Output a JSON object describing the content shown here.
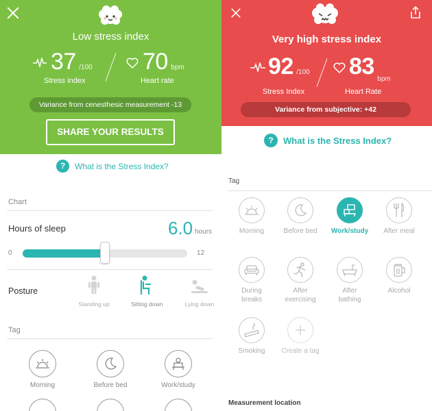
{
  "left": {
    "header": {
      "title": "Low stress index",
      "stress_value": "37",
      "stress_unit": "/100",
      "stress_label": "Stress index",
      "heart_value": "70",
      "heart_unit": "bpm",
      "heart_label": "Heart rate",
      "variance": "Variance from cenesthesic measurement -13",
      "share_label": "SHARE YOUR RESULTS",
      "bg_color": "#7bc043"
    },
    "question_link": "What is the Stress Index?",
    "chart_section": "Chart",
    "sleep": {
      "label": "Hours of sleep",
      "value": "6.0",
      "unit": "hours",
      "min": "0",
      "max": "12",
      "fraction": 0.5
    },
    "posture": {
      "label": "Posture",
      "options": [
        {
          "label": "Standing up",
          "icon": "standing-icon",
          "active": false
        },
        {
          "label": "Sitting down",
          "icon": "sitting-icon",
          "active": true
        },
        {
          "label": "Lying down",
          "icon": "lying-icon",
          "active": false
        }
      ]
    },
    "tag_section": "Tag",
    "tags": [
      {
        "label": "Morning",
        "icon": "sunrise-icon"
      },
      {
        "label": "Before bed",
        "icon": "moon-icon"
      },
      {
        "label": "Work/study",
        "icon": "desk-icon"
      }
    ]
  },
  "right": {
    "header": {
      "title": "Very high stress index",
      "stress_value": "92",
      "stress_unit": "/100",
      "stress_label": "Stress Index",
      "heart_value": "83",
      "heart_unit": "bpm",
      "heart_label": "Heart Rate",
      "variance": "Variance from subjective: +42",
      "bg_color": "#e84c4c"
    },
    "question_link": "What is the Stress Index?",
    "tag_section": "Tag",
    "tags": [
      {
        "label": "Morning",
        "icon": "sunrise-icon",
        "active": false
      },
      {
        "label": "Before bed",
        "icon": "moon-icon",
        "active": false
      },
      {
        "label": "Work/study",
        "icon": "desk-icon",
        "active": true
      },
      {
        "label": "After meal",
        "icon": "cutlery-icon",
        "active": false
      },
      {
        "label": "During\nbreaks",
        "icon": "sofa-icon",
        "active": false
      },
      {
        "label": "After\nexercising",
        "icon": "runner-icon",
        "active": false
      },
      {
        "label": "After\nbathing",
        "icon": "bathtub-icon",
        "active": false
      },
      {
        "label": "Alcohol",
        "icon": "beer-icon",
        "active": false
      },
      {
        "label": "Smoking",
        "icon": "cigarette-icon",
        "active": false
      },
      {
        "label": "Create a tag",
        "icon": "plus-icon",
        "active": false
      }
    ],
    "measurement_section": "Measurement location"
  },
  "colors": {
    "accent": "#2bb5b0",
    "green": "#7bc043",
    "red": "#e84c4c"
  }
}
